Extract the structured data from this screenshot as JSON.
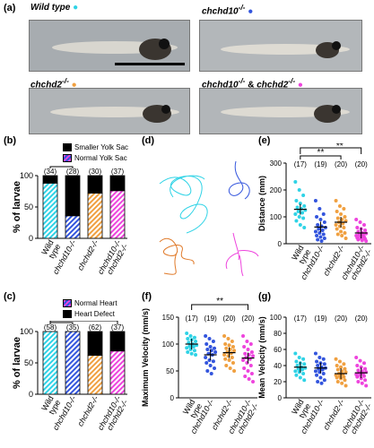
{
  "panels": {
    "a": "(a)",
    "b": "(b)",
    "c": "(c)",
    "d": "(d)",
    "e": "(e)",
    "f": "(f)",
    "g": "(g)"
  },
  "genotypes": {
    "wt": "Wild type",
    "chchd10": "chchd10",
    "chchd2": "chchd2",
    "ko_sup": "-/-",
    "and": "&"
  },
  "colors": {
    "wt": "#2fd3e6",
    "chchd10": "#3355dd",
    "chchd2": "#f0a040",
    "dko": "#ee44dd"
  },
  "images": {
    "wt_label": "Wild type",
    "chchd10_label": "chchd10",
    "chchd2_label": "chchd2",
    "dko_label_1": "chchd10",
    "dko_label_2": "chchd2",
    "ko_sup": "-/-"
  },
  "yolk_legend": {
    "smaller": "Smaller Yolk Sac",
    "normal": "Normal Yolk Sac"
  },
  "heart_legend": {
    "normal": "Normal Heart",
    "defect": "Heart Defect"
  },
  "chart_data": [
    {
      "id": "b",
      "type": "bar",
      "stacked": true,
      "ylabel": "% of larvae",
      "ylim": [
        0,
        100
      ],
      "yticks": [
        0,
        50,
        100
      ],
      "categories": [
        "Wild type",
        "chchd10-/-",
        "chchd2-/-",
        "chchd10-/- chchd2-/-"
      ],
      "n_labels": [
        "(34)",
        "(28)",
        "(30)",
        "(37)"
      ],
      "series": [
        {
          "name": "Normal Yolk Sac",
          "values": [
            88,
            36,
            72,
            76
          ]
        },
        {
          "name": "Smaller Yolk Sac",
          "values": [
            12,
            64,
            28,
            24
          ]
        }
      ],
      "significance": [
        "**"
      ]
    },
    {
      "id": "c",
      "type": "bar",
      "stacked": true,
      "ylabel": "% of larvae",
      "ylim": [
        0,
        100
      ],
      "yticks": [
        0,
        50,
        100
      ],
      "categories": [
        "Wild type",
        "chchd10-/-",
        "chchd2-/-",
        "chchd10-/- chchd2-/-"
      ],
      "n_labels": [
        "(58)",
        "(35)",
        "(62)",
        "(37)"
      ],
      "series": [
        {
          "name": "Normal Heart",
          "values": [
            100,
            100,
            62,
            69
          ]
        },
        {
          "name": "Heart Defect",
          "values": [
            0,
            0,
            38,
            31
          ]
        }
      ],
      "significance": [
        "**",
        "**"
      ]
    },
    {
      "id": "e",
      "type": "scatter",
      "ylabel": "Distance (mm)",
      "ylim": [
        0,
        300
      ],
      "yticks": [
        0,
        100,
        200,
        300
      ],
      "categories": [
        "Wild type",
        "chchd10-/-",
        "chchd2-/-",
        "chchd10-/- chchd2-/-"
      ],
      "n_labels": [
        "(17)",
        "(19)",
        "(20)",
        "(20)"
      ],
      "means": [
        128,
        62,
        80,
        40
      ],
      "points": [
        [
          230,
          200,
          180,
          160,
          150,
          140,
          135,
          130,
          125,
          120,
          115,
          110,
          100,
          95,
          85,
          70,
          60
        ],
        [
          160,
          130,
          110,
          100,
          90,
          80,
          70,
          65,
          60,
          55,
          50,
          45,
          40,
          35,
          30,
          25,
          20,
          15,
          10
        ],
        [
          160,
          140,
          130,
          120,
          110,
          100,
          95,
          90,
          85,
          80,
          75,
          70,
          65,
          60,
          55,
          45,
          40,
          35,
          30,
          20
        ],
        [
          90,
          80,
          70,
          60,
          55,
          50,
          45,
          40,
          38,
          35,
          32,
          30,
          28,
          25,
          22,
          20,
          18,
          15,
          12,
          10
        ]
      ],
      "significance": [
        "**",
        "**"
      ]
    },
    {
      "id": "f",
      "type": "scatter",
      "ylabel": "Maximum Velocity (mm/s)",
      "ylim": [
        0,
        150
      ],
      "yticks": [
        0,
        50,
        100,
        150
      ],
      "categories": [
        "Wild type",
        "chchd10-/-",
        "chchd2-/-",
        "chchd10-/- chchd2-/-"
      ],
      "n_labels": [
        "(17)",
        "(19)",
        "(20)",
        "(20)"
      ],
      "means": [
        100,
        80,
        84,
        74
      ],
      "points": [
        [
          120,
          115,
          112,
          110,
          108,
          105,
          103,
          100,
          98,
          96,
          95,
          93,
          90,
          88,
          85,
          82,
          80
        ],
        [
          115,
          110,
          105,
          100,
          95,
          92,
          90,
          88,
          85,
          82,
          80,
          75,
          70,
          68,
          65,
          60,
          55,
          50,
          45
        ],
        [
          115,
          110,
          105,
          100,
          98,
          95,
          92,
          90,
          88,
          85,
          83,
          80,
          78,
          75,
          72,
          70,
          65,
          60,
          55,
          50
        ],
        [
          115,
          105,
          100,
          95,
          90,
          85,
          82,
          80,
          78,
          75,
          72,
          70,
          65,
          60,
          55,
          50,
          45,
          40,
          35,
          30
        ]
      ],
      "significance": [
        "**"
      ]
    },
    {
      "id": "g",
      "type": "scatter",
      "ylabel": "Mean Velocity (mm/s)",
      "ylim": [
        0,
        100
      ],
      "yticks": [
        0,
        20,
        40,
        60,
        80,
        100
      ],
      "categories": [
        "Wild type",
        "chchd10-/-",
        "chchd2-/-",
        "chchd10-/- chchd2-/-"
      ],
      "n_labels": [
        "(17)",
        "(19)",
        "(20)",
        "(20)"
      ],
      "means": [
        38,
        37,
        30,
        31
      ],
      "points": [
        [
          55,
          50,
          48,
          45,
          43,
          42,
          40,
          38,
          37,
          36,
          35,
          33,
          32,
          30,
          28,
          25,
          22
        ],
        [
          55,
          50,
          48,
          45,
          43,
          42,
          40,
          38,
          37,
          36,
          35,
          33,
          32,
          30,
          28,
          25,
          22,
          20,
          18
        ],
        [
          48,
          45,
          42,
          40,
          38,
          36,
          35,
          33,
          32,
          30,
          29,
          28,
          27,
          26,
          25,
          24,
          22,
          20,
          18,
          15
        ],
        [
          50,
          46,
          43,
          40,
          38,
          36,
          34,
          33,
          32,
          31,
          30,
          29,
          28,
          27,
          26,
          24,
          22,
          20,
          18,
          15
        ]
      ],
      "significance": []
    }
  ]
}
